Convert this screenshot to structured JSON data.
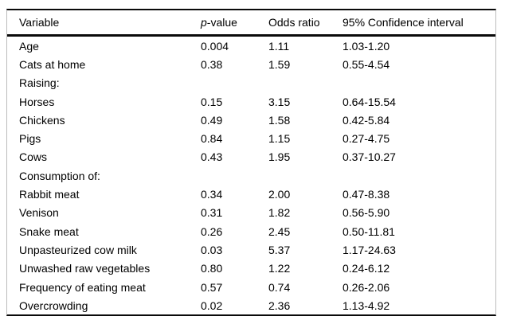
{
  "table": {
    "title": "logistic-regression-results",
    "columns": {
      "variable": "Variable",
      "p_value_italic": "p",
      "p_value_rest": "-value",
      "odds_ratio": "Odds ratio",
      "confidence_interval": "95% Confidence interval"
    },
    "rows": [
      {
        "variable": "Age",
        "p": "0.004",
        "or": "1.11",
        "ci": "1.03-1.20"
      },
      {
        "variable": "Cats at home",
        "p": "0.38",
        "or": "1.59",
        "ci": "0.55-4.54"
      },
      {
        "variable": "Raising:",
        "p": "",
        "or": "",
        "ci": ""
      },
      {
        "variable": "Horses",
        "p": "0.15",
        "or": "3.15",
        "ci": "0.64-15.54"
      },
      {
        "variable": "Chickens",
        "p": "0.49",
        "or": "1.58",
        "ci": "0.42-5.84"
      },
      {
        "variable": "Pigs",
        "p": "0.84",
        "or": "1.15",
        "ci": "0.27-4.75"
      },
      {
        "variable": "Cows",
        "p": "0.43",
        "or": "1.95",
        "ci": "0.37-10.27"
      },
      {
        "variable": "Consumption of:",
        "p": "",
        "or": "",
        "ci": ""
      },
      {
        "variable": "Rabbit meat",
        "p": "0.34",
        "or": "2.00",
        "ci": "0.47-8.38"
      },
      {
        "variable": "Venison",
        "p": "0.31",
        "or": "1.82",
        "ci": "0.56-5.90"
      },
      {
        "variable": "Snake meat",
        "p": "0.26",
        "or": "2.45",
        "ci": "0.50-11.81"
      },
      {
        "variable": "Unpasteurized cow milk",
        "p": "0.03",
        "or": "5.37",
        "ci": "1.17-24.63"
      },
      {
        "variable": "Unwashed raw vegetables",
        "p": "0.80",
        "or": "1.22",
        "ci": "0.24-6.12"
      },
      {
        "variable": "Frequency of eating meat",
        "p": "0.57",
        "or": "0.74",
        "ci": "0.26-2.06"
      },
      {
        "variable": "Overcrowding",
        "p": "0.02",
        "or": "2.36",
        "ci": "1.13-4.92"
      }
    ],
    "colors": {
      "rule_dark": "#0a0a0a",
      "rule_side": "#bdbdbd",
      "text": "#000000",
      "background": "#ffffff"
    }
  }
}
